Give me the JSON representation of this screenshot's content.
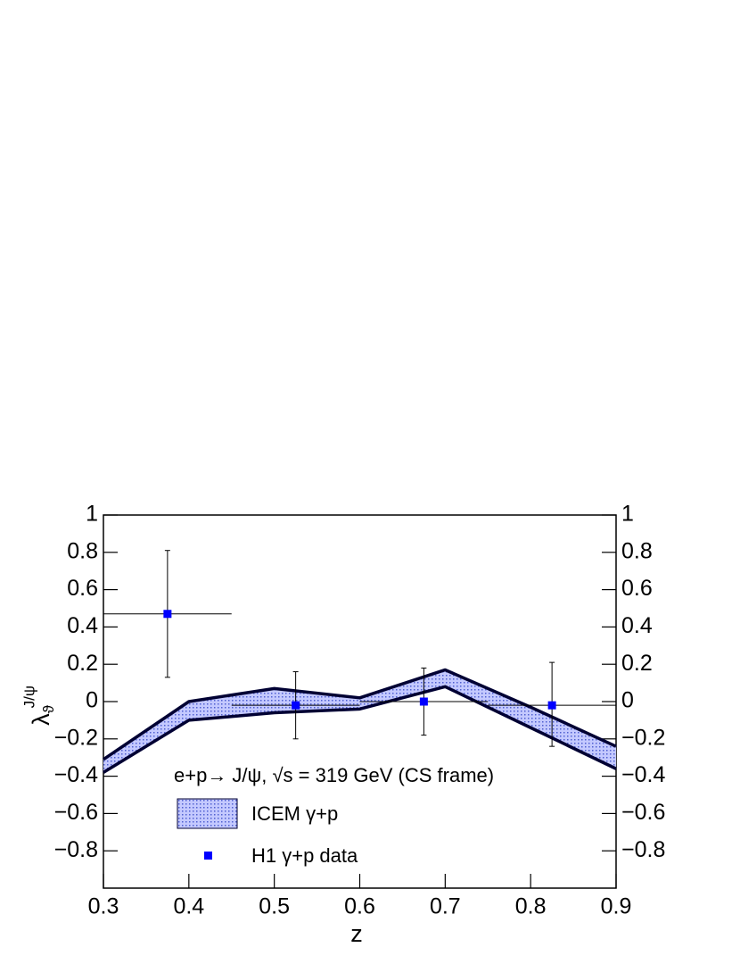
{
  "chart_data": {
    "type": "band_errorbar",
    "xlabel": "z",
    "ylabel": {
      "symbol": "λ",
      "sub": "ϑ",
      "sup": "J/ψ"
    },
    "annotation": "e+p→ J/ψ, √s = 319 GeV (CS frame)",
    "xlim": [
      0.3,
      0.9
    ],
    "ylim": [
      -1,
      1
    ],
    "xticks": [
      0.3,
      0.4,
      0.5,
      0.6,
      0.7,
      0.8,
      0.9
    ],
    "yticks": [
      {
        "value": -0.8,
        "label": "−0.8"
      },
      {
        "value": -0.6,
        "label": "−0.6"
      },
      {
        "value": -0.4,
        "label": "−0.4"
      },
      {
        "value": -0.2,
        "label": "−0.2"
      },
      0,
      0.2,
      0.4,
      0.6,
      0.8,
      1
    ],
    "band": {
      "name": "ICEM γ+p",
      "color": "#3040c0",
      "edge_color": "#000033",
      "x": [
        0.3,
        0.4,
        0.5,
        0.6,
        0.7,
        0.8,
        0.9
      ],
      "upper": [
        -0.31,
        0.0,
        0.07,
        0.02,
        0.17,
        -0.03,
        -0.24
      ],
      "lower": [
        -0.38,
        -0.1,
        -0.06,
        -0.04,
        0.08,
        -0.14,
        -0.36
      ]
    },
    "series": [
      {
        "name": "H1 γ+p data",
        "color": "#0000ff",
        "x": [
          0.375,
          0.525,
          0.675,
          0.825
        ],
        "values": [
          0.47,
          -0.02,
          0.0,
          -0.02
        ],
        "x_low": [
          0.3,
          0.45,
          0.6,
          0.75
        ],
        "x_high": [
          0.45,
          0.6,
          0.75,
          0.9
        ],
        "y_low": [
          0.13,
          -0.2,
          -0.18,
          -0.24
        ],
        "y_high": [
          0.81,
          0.16,
          0.18,
          0.21
        ]
      }
    ],
    "legend": "bottom-left"
  }
}
